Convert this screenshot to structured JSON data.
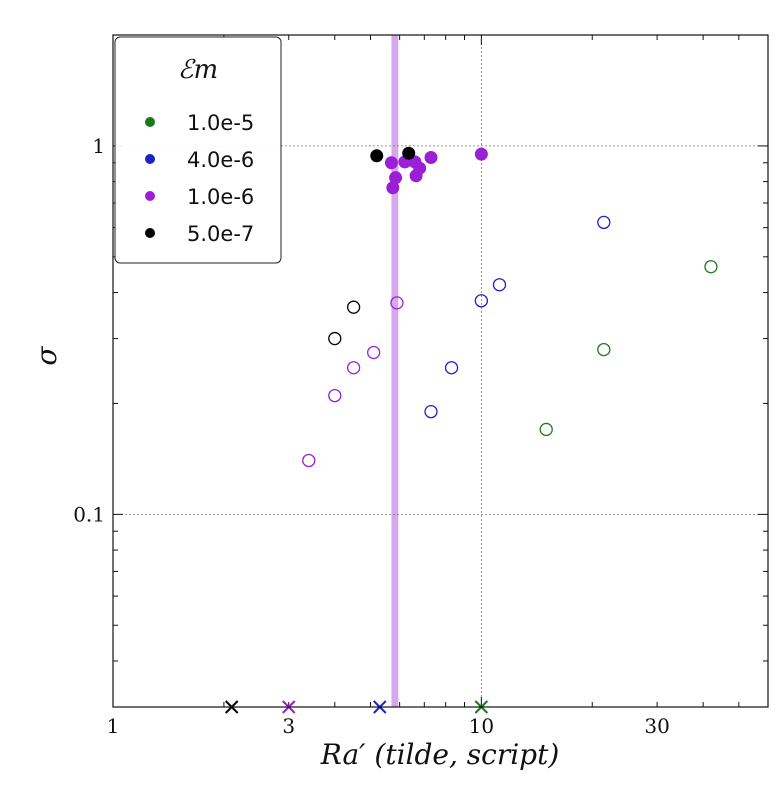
{
  "chart_data": {
    "type": "scatter",
    "title": "",
    "xlabel": "Ra′ (tilde, script)",
    "ylabel": "σ",
    "xscale": "log",
    "yscale": "log",
    "xlim": [
      1,
      60
    ],
    "ylim": [
      0.03,
      2.0
    ],
    "grid": "x=10 and y=0.1, y=1 dotted lines",
    "x_ticks": [
      {
        "value": 1,
        "label": "1"
      },
      {
        "value": 3,
        "label": "3"
      },
      {
        "value": 10,
        "label": "10"
      },
      {
        "value": 30,
        "label": "30"
      }
    ],
    "y_ticks": [
      {
        "value": 0.1,
        "label": "0.1"
      },
      {
        "value": 1,
        "label": "1"
      }
    ],
    "legend": {
      "title": "ℰm",
      "placement": "top-left",
      "entries": [
        {
          "label": "1.0e-5",
          "color": "#1a7a1a"
        },
        {
          "label": "4.0e-6",
          "color": "#1a22c8"
        },
        {
          "label": "1.0e-6",
          "color": "#9a1fd6"
        },
        {
          "label": "5.0e-7",
          "color": "#000000"
        }
      ]
    },
    "vertical_band": {
      "x_min": 5.7,
      "x_max": 5.95,
      "color": "#c88ae6"
    },
    "series": [
      {
        "name": "1.0e-5",
        "color": "#1a7a1a",
        "filled": [],
        "open": [
          {
            "x": 15.0,
            "y": 0.17
          },
          {
            "x": 21.5,
            "y": 0.28
          },
          {
            "x": 42.0,
            "y": 0.47
          }
        ],
        "crosses": [
          10.0
        ]
      },
      {
        "name": "4.0e-6",
        "color": "#1a22c8",
        "filled": [],
        "open": [
          {
            "x": 7.3,
            "y": 0.19
          },
          {
            "x": 8.3,
            "y": 0.25
          },
          {
            "x": 10.0,
            "y": 0.38
          },
          {
            "x": 11.2,
            "y": 0.42
          },
          {
            "x": 21.5,
            "y": 0.62
          }
        ],
        "crosses": [
          5.3
        ]
      },
      {
        "name": "1.0e-6",
        "color": "#9a1fd6",
        "filled": [
          {
            "x": 5.7,
            "y": 0.9
          },
          {
            "x": 5.75,
            "y": 0.77
          },
          {
            "x": 5.85,
            "y": 0.82
          },
          {
            "x": 6.2,
            "y": 0.905
          },
          {
            "x": 6.6,
            "y": 0.905
          },
          {
            "x": 6.65,
            "y": 0.83
          },
          {
            "x": 6.8,
            "y": 0.87
          },
          {
            "x": 7.3,
            "y": 0.93
          },
          {
            "x": 10.0,
            "y": 0.95
          }
        ],
        "open": [
          {
            "x": 3.4,
            "y": 0.14
          },
          {
            "x": 4.0,
            "y": 0.21
          },
          {
            "x": 4.5,
            "y": 0.25
          },
          {
            "x": 5.1,
            "y": 0.275
          },
          {
            "x": 5.9,
            "y": 0.375
          }
        ],
        "crosses": [
          3.0
        ]
      },
      {
        "name": "5.0e-7",
        "color": "#000000",
        "filled": [
          {
            "x": 5.2,
            "y": 0.94
          },
          {
            "x": 6.35,
            "y": 0.955
          }
        ],
        "open": [
          {
            "x": 4.0,
            "y": 0.3
          },
          {
            "x": 4.5,
            "y": 0.365
          }
        ],
        "crosses": [
          2.1
        ]
      }
    ]
  }
}
